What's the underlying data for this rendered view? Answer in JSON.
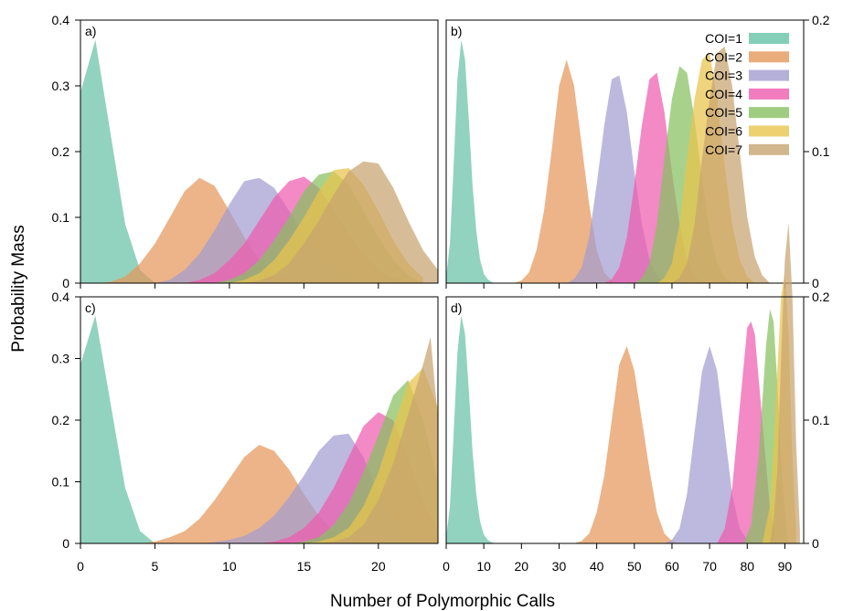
{
  "figure": {
    "xlabel": "Number of Polymorphic Calls",
    "ylabel": "Probability Mass"
  },
  "legend": {
    "placement": "top-right of panel b",
    "entries": [
      {
        "label": "COI=1",
        "color": "#66C2A5"
      },
      {
        "label": "COI=2",
        "color": "#E5975A"
      },
      {
        "label": "COI=3",
        "color": "#A39CD0"
      },
      {
        "label": "COI=4",
        "color": "#EE5BAE"
      },
      {
        "label": "COI=5",
        "color": "#86C05F"
      },
      {
        "label": "COI=6",
        "color": "#E9C44C"
      },
      {
        "label": "COI=7",
        "color": "#C7A46F"
      }
    ]
  },
  "chart_data": [
    {
      "type": "area",
      "panel": "a)",
      "xlim": [
        0,
        24
      ],
      "ylim": [
        0,
        0.4
      ],
      "xticks": [
        0,
        5,
        10,
        15,
        20
      ],
      "yticks": [
        0,
        0.1,
        0.2,
        0.3,
        0.4
      ],
      "ytick_labels": [
        "0",
        "0.1",
        "0.2",
        "0.3",
        "0.4"
      ],
      "y_axis_side": "left",
      "series": [
        {
          "name": "COI=1",
          "x": [
            0,
            1,
            2,
            3,
            4,
            5
          ],
          "y": [
            0.29,
            0.37,
            0.23,
            0.09,
            0.02,
            0
          ]
        },
        {
          "name": "COI=2",
          "x": [
            1,
            2,
            3,
            4,
            5,
            6,
            7,
            8,
            9,
            10,
            11,
            12,
            13,
            14,
            15
          ],
          "y": [
            0,
            0.002,
            0.01,
            0.03,
            0.06,
            0.1,
            0.14,
            0.16,
            0.148,
            0.11,
            0.07,
            0.035,
            0.015,
            0.005,
            0
          ]
        },
        {
          "name": "COI=3",
          "x": [
            5,
            6,
            7,
            8,
            9,
            10,
            11,
            12,
            13,
            14,
            15,
            16,
            17,
            18,
            19,
            20
          ],
          "y": [
            0,
            0.005,
            0.02,
            0.045,
            0.08,
            0.12,
            0.155,
            0.16,
            0.145,
            0.11,
            0.075,
            0.04,
            0.02,
            0.008,
            0.002,
            0
          ]
        },
        {
          "name": "COI=4",
          "x": [
            7,
            8,
            9,
            10,
            11,
            12,
            13,
            14,
            15,
            16,
            17,
            18,
            19,
            20,
            21,
            22
          ],
          "y": [
            0,
            0.005,
            0.015,
            0.035,
            0.06,
            0.095,
            0.13,
            0.155,
            0.162,
            0.145,
            0.11,
            0.075,
            0.045,
            0.02,
            0.008,
            0
          ]
        },
        {
          "name": "COI=5",
          "x": [
            9,
            10,
            11,
            12,
            13,
            14,
            15,
            16,
            17,
            18,
            19,
            20,
            21,
            22,
            23
          ],
          "y": [
            0,
            0.005,
            0.015,
            0.035,
            0.065,
            0.1,
            0.14,
            0.165,
            0.17,
            0.15,
            0.11,
            0.07,
            0.035,
            0.012,
            0
          ]
        },
        {
          "name": "COI=6",
          "x": [
            10,
            11,
            12,
            13,
            14,
            15,
            16,
            17,
            18,
            19,
            20,
            21,
            22,
            23
          ],
          "y": [
            0,
            0.005,
            0.015,
            0.035,
            0.065,
            0.1,
            0.14,
            0.172,
            0.175,
            0.15,
            0.11,
            0.065,
            0.03,
            0.008
          ]
        },
        {
          "name": "COI=7",
          "x": [
            11,
            12,
            13,
            14,
            15,
            16,
            17,
            18,
            19,
            20,
            21,
            22,
            23,
            24
          ],
          "y": [
            0,
            0.004,
            0.012,
            0.03,
            0.06,
            0.095,
            0.135,
            0.17,
            0.185,
            0.182,
            0.145,
            0.095,
            0.05,
            0.02
          ]
        }
      ]
    },
    {
      "type": "area",
      "panel": "b)",
      "xlim": [
        0,
        95
      ],
      "ylim": [
        0,
        0.2
      ],
      "xticks": [
        0,
        10,
        20,
        30,
        40,
        50,
        60,
        70,
        80,
        90
      ],
      "yticks": [
        0,
        0.1,
        0.2
      ],
      "ytick_labels": [
        "0",
        "0.1",
        "0.2"
      ],
      "y_axis_side": "right",
      "series": [
        {
          "name": "COI=1",
          "x": [
            0,
            1,
            2,
            3,
            4,
            5,
            6,
            7,
            8,
            9,
            10,
            11,
            12,
            13
          ],
          "y": [
            0.005,
            0.03,
            0.09,
            0.155,
            0.185,
            0.17,
            0.125,
            0.075,
            0.04,
            0.018,
            0.007,
            0.003,
            0.001,
            0
          ]
        },
        {
          "name": "COI=2",
          "x": [
            18,
            20,
            22,
            24,
            26,
            28,
            30,
            32,
            34,
            36,
            38,
            40,
            42,
            44,
            46
          ],
          "y": [
            0,
            0.002,
            0.008,
            0.025,
            0.055,
            0.1,
            0.15,
            0.17,
            0.15,
            0.105,
            0.06,
            0.025,
            0.008,
            0.002,
            0
          ]
        },
        {
          "name": "COI=3",
          "x": [
            32,
            34,
            36,
            38,
            40,
            42,
            44,
            46,
            48,
            50,
            52,
            54,
            56,
            58,
            60
          ],
          "y": [
            0,
            0.003,
            0.012,
            0.035,
            0.075,
            0.12,
            0.155,
            0.158,
            0.13,
            0.085,
            0.045,
            0.018,
            0.006,
            0.001,
            0
          ]
        },
        {
          "name": "COI=4",
          "x": [
            42,
            44,
            46,
            48,
            50,
            52,
            54,
            56,
            58,
            60,
            62,
            64,
            66,
            68,
            70
          ],
          "y": [
            0,
            0.003,
            0.012,
            0.035,
            0.075,
            0.12,
            0.155,
            0.16,
            0.13,
            0.085,
            0.045,
            0.018,
            0.006,
            0.001,
            0
          ]
        },
        {
          "name": "COI=5",
          "x": [
            50,
            52,
            54,
            56,
            58,
            60,
            62,
            64,
            66,
            68,
            70,
            72,
            74,
            76
          ],
          "y": [
            0,
            0.004,
            0.015,
            0.045,
            0.095,
            0.14,
            0.165,
            0.16,
            0.125,
            0.08,
            0.04,
            0.015,
            0.004,
            0
          ]
        },
        {
          "name": "COI=6",
          "x": [
            56,
            58,
            60,
            62,
            64,
            66,
            68,
            70,
            72,
            74,
            76,
            78,
            80,
            82
          ],
          "y": [
            0,
            0.004,
            0.015,
            0.045,
            0.095,
            0.14,
            0.17,
            0.175,
            0.14,
            0.09,
            0.045,
            0.018,
            0.005,
            0
          ]
        },
        {
          "name": "COI=7",
          "x": [
            60,
            62,
            64,
            66,
            68,
            70,
            72,
            74,
            76,
            78,
            80,
            82,
            84,
            86
          ],
          "y": [
            0,
            0.004,
            0.015,
            0.045,
            0.095,
            0.14,
            0.175,
            0.18,
            0.15,
            0.1,
            0.05,
            0.02,
            0.006,
            0
          ]
        }
      ]
    },
    {
      "type": "area",
      "panel": "c)",
      "xlim": [
        0,
        24
      ],
      "ylim": [
        0,
        0.4
      ],
      "xticks": [
        0,
        5,
        10,
        15,
        20
      ],
      "yticks": [
        0,
        0.1,
        0.2,
        0.3,
        0.4
      ],
      "ytick_labels": [
        "0",
        "0.1",
        "0.2",
        "0.3",
        "0.4"
      ],
      "y_axis_side": "left",
      "series": [
        {
          "name": "COI=1",
          "x": [
            0,
            1,
            2,
            3,
            4,
            5
          ],
          "y": [
            0.29,
            0.37,
            0.23,
            0.09,
            0.02,
            0
          ]
        },
        {
          "name": "COI=2",
          "x": [
            4,
            5,
            6,
            7,
            8,
            9,
            10,
            11,
            12,
            13,
            14,
            15,
            16,
            17,
            18,
            19,
            20,
            21
          ],
          "y": [
            0,
            0.003,
            0.01,
            0.02,
            0.04,
            0.07,
            0.105,
            0.14,
            0.16,
            0.15,
            0.12,
            0.08,
            0.045,
            0.02,
            0.008,
            0.003,
            0.001,
            0
          ]
        },
        {
          "name": "COI=3",
          "x": [
            8,
            9,
            10,
            11,
            12,
            13,
            14,
            15,
            16,
            17,
            18,
            19,
            20,
            21,
            22,
            23
          ],
          "y": [
            0,
            0.002,
            0.006,
            0.012,
            0.025,
            0.045,
            0.075,
            0.11,
            0.15,
            0.175,
            0.178,
            0.14,
            0.08,
            0.035,
            0.01,
            0
          ]
        },
        {
          "name": "COI=4",
          "x": [
            12,
            13,
            14,
            15,
            16,
            17,
            18,
            19,
            20,
            21,
            22,
            23,
            24
          ],
          "y": [
            0,
            0.003,
            0.01,
            0.025,
            0.05,
            0.09,
            0.14,
            0.19,
            0.213,
            0.2,
            0.14,
            0.07,
            0.02
          ]
        },
        {
          "name": "COI=5",
          "x": [
            14,
            15,
            16,
            17,
            18,
            19,
            20,
            21,
            22,
            23,
            24
          ],
          "y": [
            0,
            0.003,
            0.01,
            0.03,
            0.065,
            0.115,
            0.175,
            0.24,
            0.265,
            0.2,
            0.1
          ]
        },
        {
          "name": "COI=6",
          "x": [
            15,
            16,
            17,
            18,
            19,
            20,
            21,
            22,
            23,
            24
          ],
          "y": [
            0,
            0.003,
            0.01,
            0.025,
            0.06,
            0.115,
            0.19,
            0.26,
            0.285,
            0.22
          ]
        },
        {
          "name": "COI=7",
          "x": [
            16,
            17,
            18,
            19,
            20,
            21,
            22,
            23,
            23.5,
            24
          ],
          "y": [
            0,
            0.003,
            0.01,
            0.03,
            0.07,
            0.13,
            0.21,
            0.29,
            0.335,
            0.2
          ]
        }
      ]
    },
    {
      "type": "area",
      "panel": "d)",
      "xlim": [
        0,
        95
      ],
      "ylim": [
        0,
        0.2
      ],
      "xticks": [
        0,
        10,
        20,
        30,
        40,
        50,
        60,
        70,
        80,
        90
      ],
      "yticks": [
        0,
        0.1,
        0.2
      ],
      "ytick_labels": [
        "0",
        "0.1",
        "0.2"
      ],
      "y_axis_side": "right",
      "series": [
        {
          "name": "COI=1",
          "x": [
            0,
            1,
            2,
            3,
            4,
            5,
            6,
            7,
            8,
            9,
            10,
            11,
            12,
            13
          ],
          "y": [
            0.005,
            0.03,
            0.09,
            0.155,
            0.185,
            0.17,
            0.125,
            0.075,
            0.04,
            0.018,
            0.007,
            0.003,
            0.001,
            0
          ]
        },
        {
          "name": "COI=2",
          "x": [
            34,
            36,
            38,
            40,
            42,
            44,
            46,
            48,
            50,
            52,
            54,
            56,
            58,
            60,
            62
          ],
          "y": [
            0,
            0.002,
            0.008,
            0.025,
            0.055,
            0.1,
            0.145,
            0.16,
            0.14,
            0.1,
            0.06,
            0.025,
            0.008,
            0.002,
            0
          ]
        },
        {
          "name": "COI=3",
          "x": [
            58,
            60,
            62,
            64,
            66,
            68,
            70,
            72,
            74,
            76,
            78,
            80,
            82
          ],
          "y": [
            0,
            0.003,
            0.012,
            0.04,
            0.09,
            0.14,
            0.16,
            0.14,
            0.09,
            0.04,
            0.012,
            0.003,
            0
          ]
        },
        {
          "name": "COI=4",
          "x": [
            72,
            74,
            76,
            78,
            80,
            81,
            82,
            84,
            86,
            88
          ],
          "y": [
            0,
            0.012,
            0.045,
            0.11,
            0.175,
            0.18,
            0.17,
            0.1,
            0.03,
            0
          ]
        },
        {
          "name": "COI=5",
          "x": [
            79,
            81,
            83,
            85,
            86,
            87,
            88,
            89,
            90,
            91
          ],
          "y": [
            0,
            0.015,
            0.07,
            0.16,
            0.19,
            0.18,
            0.13,
            0.07,
            0.025,
            0
          ]
        },
        {
          "name": "COI=6",
          "x": [
            84,
            86,
            87,
            88,
            89,
            90,
            91,
            92,
            93
          ],
          "y": [
            0,
            0.03,
            0.08,
            0.14,
            0.2,
            0.22,
            0.17,
            0.07,
            0.01
          ]
        },
        {
          "name": "COI=7",
          "x": [
            86,
            87,
            88,
            89,
            90,
            91,
            92,
            93,
            94
          ],
          "y": [
            0,
            0.02,
            0.06,
            0.15,
            0.23,
            0.26,
            0.2,
            0.08,
            0.01
          ]
        }
      ]
    }
  ]
}
